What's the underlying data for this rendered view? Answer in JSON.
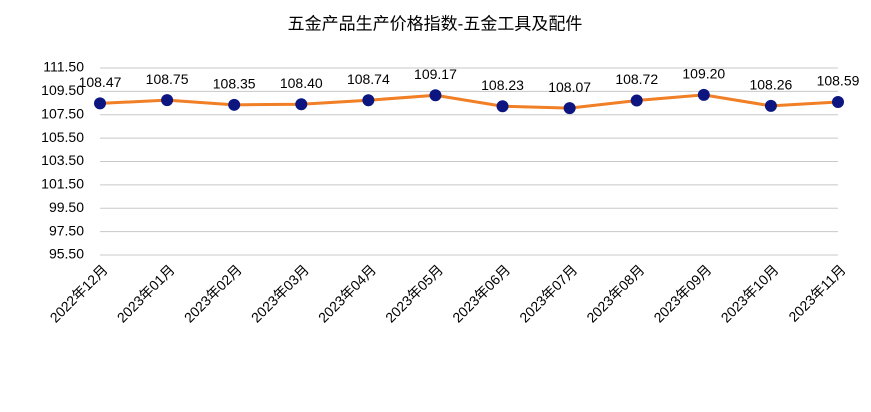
{
  "chart_data": {
    "type": "line",
    "title": "五金产品生产价格指数-五金工具及配件",
    "categories": [
      "2022年12月",
      "2023年01月",
      "2023年02月",
      "2023年03月",
      "2023年04月",
      "2023年05月",
      "2023年06月",
      "2023年07月",
      "2023年08月",
      "2023年09月",
      "2023年10月",
      "2023年11月"
    ],
    "series": [
      {
        "name": "五金产品生产价格指数-五金工具及配件",
        "color": "#f07f26",
        "marker_color": "#0d1680",
        "values": [
          108.47,
          108.75,
          108.35,
          108.4,
          108.74,
          109.17,
          108.23,
          108.07,
          108.72,
          109.2,
          108.26,
          108.59
        ],
        "value_labels": [
          "108.47",
          "108.75",
          "108.35",
          "108.40",
          "108.74",
          "109.17",
          "108.23",
          "108.07",
          "108.72",
          "109.20",
          "108.26",
          "108.59"
        ]
      }
    ],
    "ylim": [
      95.5,
      111.5
    ],
    "yticks": [
      {
        "value": 95.5,
        "label": "95.50"
      },
      {
        "value": 97.5,
        "label": "97.50"
      },
      {
        "value": 99.5,
        "label": "99.50"
      },
      {
        "value": 101.5,
        "label": "101.50"
      },
      {
        "value": 103.5,
        "label": "103.50"
      },
      {
        "value": 105.5,
        "label": "105.50"
      },
      {
        "value": 107.5,
        "label": "107.50"
      },
      {
        "value": 109.5,
        "label": "109.50"
      },
      {
        "value": 111.5,
        "label": "111.50"
      }
    ],
    "grid": true
  }
}
